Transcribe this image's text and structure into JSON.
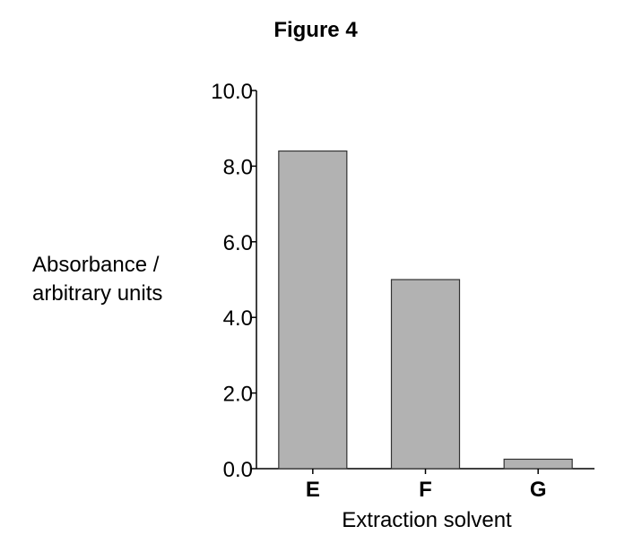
{
  "chart_data": {
    "type": "bar",
    "title": "Figure 4",
    "xlabel": "Extraction solvent",
    "ylabel_lines": [
      "Absorbance /",
      "arbitrary units"
    ],
    "categories": [
      "E",
      "F",
      "G"
    ],
    "values": [
      8.4,
      5.0,
      0.25
    ],
    "ylim": [
      0,
      10
    ],
    "yticks": [
      "0.0",
      "2.0",
      "4.0",
      "6.0",
      "8.0",
      "10.0"
    ],
    "ytick_values": [
      0,
      2,
      4,
      6,
      8,
      10
    ],
    "grid": false,
    "legend": "none",
    "bar_color": "#b2b2b2",
    "bar_stroke": "#333333"
  }
}
